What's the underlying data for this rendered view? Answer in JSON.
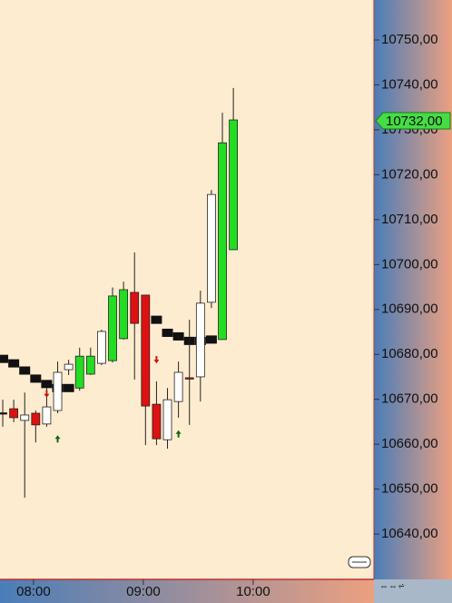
{
  "chart_data": {
    "type": "candlestick",
    "x": [
      0,
      1,
      2,
      3,
      4,
      5,
      6,
      7,
      8,
      9,
      10,
      11,
      12,
      13,
      14,
      15,
      16,
      17,
      18,
      19,
      20,
      21
    ],
    "open": [
      10666.9,
      10667.9,
      10665.3,
      10666.9,
      10664.5,
      10667.5,
      10676.6,
      10672.5,
      10675.6,
      10678.0,
      10678.6,
      10683.5,
      10693.8,
      10693.2,
      10668.9,
      10661.0,
      10669.5,
      10674.8,
      10675.0,
      10691.6,
      10683.3,
      10703.3
    ],
    "high": [
      10669.9,
      10669.9,
      10671.5,
      10667.5,
      10672.5,
      10678.4,
      10678.8,
      10681.5,
      10681.5,
      10685.5,
      10694.9,
      10696.2,
      10702.7,
      10693.2,
      10674.0,
      10672.5,
      10678.4,
      10687.7,
      10694.2,
      10716.6,
      10733.8,
      10739.3
    ],
    "low": [
      10663.9,
      10664.9,
      10648.1,
      10660.4,
      10663.9,
      10666.9,
      10675.4,
      10671.9,
      10675.4,
      10677.6,
      10678.2,
      10683.3,
      10674.4,
      10659.8,
      10659.8,
      10659.0,
      10665.9,
      10664.3,
      10669.5,
      10690.3,
      10683.3,
      10703.3
    ],
    "close": [
      10667.0,
      10665.9,
      10666.5,
      10664.3,
      10668.3,
      10676.0,
      10677.8,
      10679.6,
      10679.6,
      10685.1,
      10693.0,
      10694.4,
      10686.9,
      10668.5,
      10661.2,
      10669.9,
      10676.0,
      10674.6,
      10691.4,
      10715.6,
      10727.1,
      10732.2
    ],
    "candle_colors": [
      "#000000",
      "#dd1111",
      "#ffffff",
      "#dd1111",
      "#ffffff",
      "#ffffff",
      "#ffffff",
      "#22dd22",
      "#22dd22",
      "#ffffff",
      "#22dd22",
      "#22dd22",
      "#dd1111",
      "#dd1111",
      "#dd1111",
      "#ffffff",
      "#ffffff",
      "#dd1111",
      "#ffffff",
      "#ffffff",
      "#22dd22",
      "#22dd22"
    ],
    "ma": [
      10679.0,
      10678.0,
      10676.4,
      10674.6,
      10673.4,
      10672.5,
      10672.5,
      null,
      null,
      null,
      null,
      null,
      null,
      null,
      10687.7,
      10684.8,
      10684.0,
      10683.0,
      10683.0,
      10683.3,
      null,
      null
    ],
    "sell_signals": {
      "x": [
        4,
        14
      ],
      "values": [
        10671.0,
        10678.6
      ]
    },
    "buy_signals": {
      "x": [
        5,
        16
      ],
      "values": [
        10661.4,
        10662.5
      ]
    },
    "last_price": {
      "value": 10732,
      "label": "10732,00"
    },
    "xlim": [
      -0.25,
      33.8
    ],
    "xticks": [
      {
        "value": 2.8,
        "label": "08:00"
      },
      {
        "value": 12.8,
        "label": "09:00"
      },
      {
        "value": 22.8,
        "label": "10:00"
      }
    ],
    "ylim": [
      10629.9,
      10758.9
    ],
    "yticks": [
      {
        "value": 10640,
        "label": "10640,00"
      },
      {
        "value": 10650,
        "label": "10650,00"
      },
      {
        "value": 10660,
        "label": "10660,00"
      },
      {
        "value": 10670,
        "label": "10670,00"
      },
      {
        "value": 10680,
        "label": "10680,00"
      },
      {
        "value": 10690,
        "label": "10690,00"
      },
      {
        "value": 10700,
        "label": "10700,00"
      },
      {
        "value": 10710,
        "label": "10710,00"
      },
      {
        "value": 10720,
        "label": "10720,00"
      },
      {
        "value": 10730,
        "label": "10730,00"
      },
      {
        "value": 10740,
        "label": "10740,00"
      },
      {
        "value": 10750,
        "label": "10750,00"
      }
    ]
  }
}
